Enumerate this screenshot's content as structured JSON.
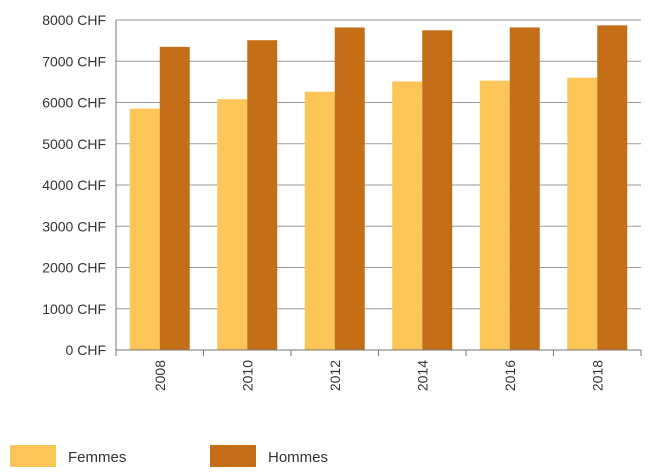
{
  "chart_data": {
    "type": "bar",
    "title": "",
    "xlabel": "",
    "ylabel": "",
    "categories": [
      "2008",
      "2010",
      "2012",
      "2014",
      "2016",
      "2018"
    ],
    "series": [
      {
        "name": "Femmes",
        "color": "#fcc557",
        "values": [
          5850,
          6080,
          6260,
          6510,
          6530,
          6600
        ]
      },
      {
        "name": "Hommes",
        "color": "#c46e17",
        "values": [
          7350,
          7510,
          7820,
          7750,
          7820,
          7870
        ]
      }
    ],
    "ylim": [
      0,
      8000
    ],
    "yticks": [
      0,
      1000,
      2000,
      3000,
      4000,
      5000,
      6000,
      7000,
      8000
    ],
    "ytick_labels": [
      "0 CHF",
      "1000 CHF",
      "2000 CHF",
      "3000 CHF",
      "4000 CHF",
      "5000 CHF",
      "6000 CHF",
      "7000 CHF",
      "8000 CHF"
    ],
    "grid": true,
    "legend_position": "bottom-left",
    "gridline_color": "#9a9a9a",
    "axis_color": "#777777"
  }
}
